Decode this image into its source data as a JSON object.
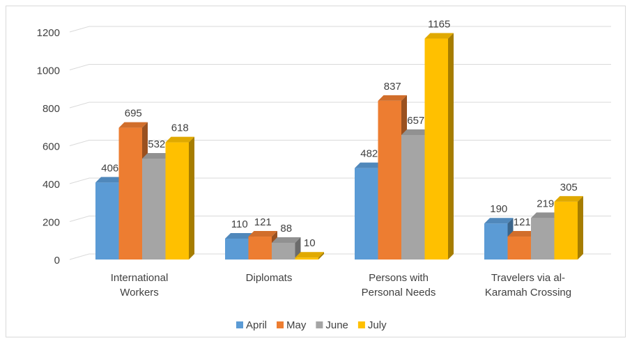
{
  "chart_data": {
    "type": "bar3d",
    "categories": [
      "International Workers",
      "Diplomats",
      "Persons with Personal Needs",
      "Travelers via al-Karamah Crossing"
    ],
    "series": [
      {
        "name": "April",
        "color": "#5b9bd5",
        "values": [
          406,
          110,
          482,
          190
        ]
      },
      {
        "name": "May",
        "color": "#ed7d31",
        "values": [
          695,
          121,
          837,
          121
        ]
      },
      {
        "name": "June",
        "color": "#a5a5a5",
        "values": [
          532,
          88,
          657,
          219
        ]
      },
      {
        "name": "July",
        "color": "#ffc000",
        "values": [
          618,
          10,
          1165,
          305
        ]
      }
    ],
    "ylim": [
      0,
      1200
    ],
    "yticks": [
      0,
      200,
      400,
      600,
      800,
      1000,
      1200
    ],
    "grid": true,
    "legend": "bottom"
  }
}
